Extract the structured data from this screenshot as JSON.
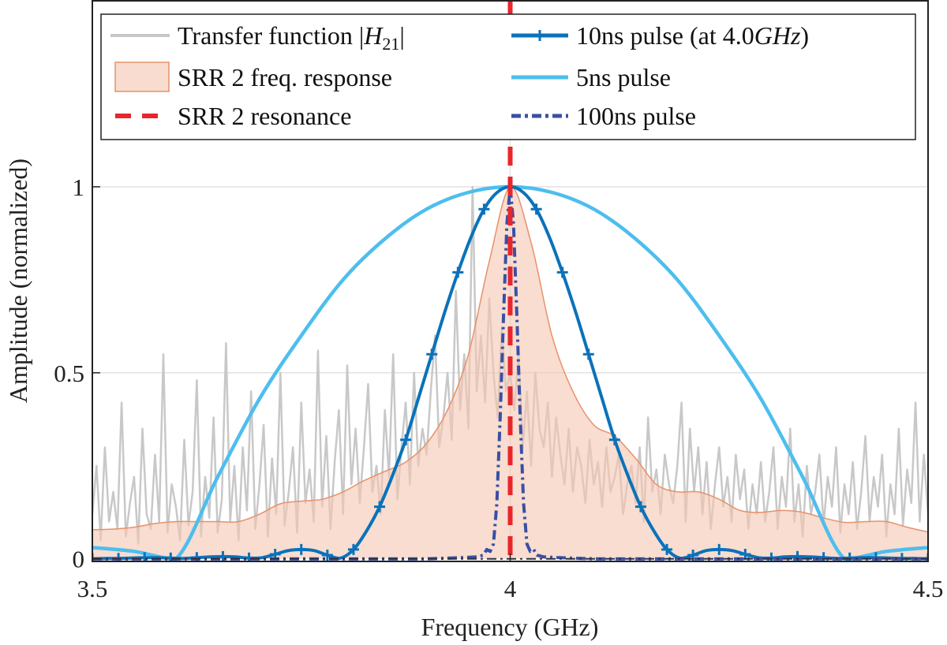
{
  "chart_data": {
    "type": "line",
    "xlabel": "Frequency (GHz)",
    "ylabel": "Amplitude (normalized)",
    "xlim": [
      3.5,
      4.5
    ],
    "ylim": [
      -0.007,
      1.5
    ],
    "xticks": [
      3.5,
      4,
      4.5
    ],
    "xtick_labels": [
      "3.5",
      "4",
      "4.5"
    ],
    "yticks": [
      0,
      0.5,
      1
    ],
    "ytick_labels": [
      "0",
      "0.5",
      "1"
    ],
    "grid": true,
    "legend_placement": "top",
    "series": [
      {
        "key": "transfer",
        "name": "Transfer function |H21|",
        "label_parts": [
          "Transfer function |",
          "H",
          "21",
          "|"
        ],
        "style": "line",
        "color": "#c8c8c8",
        "x_start": 3.5,
        "x_step": 0.005,
        "values": [
          0.12,
          0.25,
          0.05,
          0.3,
          0.1,
          0.18,
          0.08,
          0.42,
          0.06,
          0.15,
          0.22,
          0.04,
          0.35,
          0.12,
          0.08,
          0.28,
          0.1,
          0.55,
          0.07,
          0.2,
          0.14,
          0.05,
          0.32,
          0.09,
          0.18,
          0.48,
          0.06,
          0.22,
          0.11,
          0.38,
          0.07,
          0.16,
          0.58,
          0.1,
          0.25,
          0.05,
          0.3,
          0.13,
          0.45,
          0.08,
          0.2,
          0.36,
          0.06,
          0.27,
          0.12,
          0.5,
          0.09,
          0.18,
          0.3,
          0.07,
          0.42,
          0.15,
          0.24,
          0.1,
          0.56,
          0.14,
          0.33,
          0.08,
          0.26,
          0.4,
          0.12,
          0.52,
          0.2,
          0.35,
          0.15,
          0.3,
          0.47,
          0.18,
          0.25,
          0.12,
          0.4,
          0.22,
          0.55,
          0.16,
          0.3,
          0.42,
          0.2,
          0.5,
          0.25,
          0.35,
          0.28,
          0.45,
          0.6,
          0.3,
          0.38,
          0.5,
          0.32,
          0.72,
          0.4,
          0.55,
          0.35,
          1.0,
          0.45,
          0.6,
          0.42,
          0.7,
          0.5,
          0.38,
          0.62,
          0.45,
          0.5,
          0.4,
          0.55,
          0.3,
          0.45,
          0.25,
          0.5,
          0.35,
          0.3,
          0.42,
          0.22,
          0.38,
          0.28,
          0.2,
          0.35,
          0.18,
          0.3,
          0.25,
          0.15,
          0.32,
          0.2,
          0.26,
          0.14,
          0.3,
          0.18,
          0.22,
          0.28,
          0.12,
          0.2,
          0.25,
          0.15,
          0.3,
          0.1,
          0.38,
          0.18,
          0.24,
          0.12,
          0.28,
          0.2,
          0.15,
          0.25,
          0.42,
          0.1,
          0.35,
          0.18,
          0.3,
          0.12,
          0.26,
          0.08,
          0.2,
          0.3,
          0.14,
          0.22,
          0.1,
          0.28,
          0.16,
          0.24,
          0.08,
          0.2,
          0.12,
          0.26,
          0.1,
          0.18,
          0.3,
          0.08,
          0.22,
          0.14,
          0.35,
          0.1,
          0.2,
          0.06,
          0.25,
          0.12,
          0.18,
          0.28,
          0.09,
          0.22,
          0.14,
          0.3,
          0.07,
          0.2,
          0.12,
          0.26,
          0.08,
          0.18,
          0.33,
          0.1,
          0.22,
          0.14,
          0.28,
          0.06,
          0.2,
          0.12,
          0.35,
          0.09,
          0.24,
          0.15,
          0.42,
          0.1,
          0.28,
          0.12
        ]
      },
      {
        "key": "srr",
        "name": "SRR 2 freq. response",
        "style": "area",
        "color": "#f4c7b0",
        "edge_color": "#e8916a",
        "x_start": 3.5,
        "x_step": 0.025,
        "values": [
          0.078,
          0.08,
          0.085,
          0.095,
          0.1,
          0.1,
          0.1,
          0.1,
          0.12,
          0.148,
          0.155,
          0.16,
          0.18,
          0.21,
          0.235,
          0.26,
          0.31,
          0.4,
          0.55,
          0.8,
          1.0,
          0.85,
          0.6,
          0.45,
          0.36,
          0.33,
          0.27,
          0.2,
          0.18,
          0.18,
          0.16,
          0.13,
          0.125,
          0.13,
          0.125,
          0.11,
          0.098,
          0.1,
          0.1,
          0.085,
          0.072
        ]
      },
      {
        "key": "resonance",
        "name": "SRR 2 resonance",
        "style": "vline-dashed",
        "color": "#e8262c",
        "x": 4.0
      },
      {
        "key": "p10",
        "name": "10ns pulse (at 4.0GHz)",
        "label_parts": [
          "10ns pulse (at 4.0",
          "GHz",
          ")"
        ],
        "style": "line-plus-markers",
        "color": "#0a72ba",
        "x_start": 3.5,
        "x_step": 0.015625,
        "values": [
          0,
          0.001,
          0.001,
          0.002,
          0.003,
          0.003,
          0.002,
          0.001,
          0.003,
          0.005,
          0.006,
          0.005,
          0.002,
          0.003,
          0.012,
          0.022,
          0.025,
          0.022,
          0.01,
          0.002,
          0.025,
          0.075,
          0.14,
          0.225,
          0.32,
          0.435,
          0.55,
          0.665,
          0.77,
          0.865,
          0.94,
          0.985,
          1.0,
          0.985,
          0.94,
          0.865,
          0.77,
          0.665,
          0.55,
          0.435,
          0.32,
          0.225,
          0.14,
          0.075,
          0.025,
          0.002,
          0.01,
          0.022,
          0.025,
          0.022,
          0.012,
          0.003,
          0.002,
          0.005,
          0.006,
          0.005,
          0.003,
          0.001,
          0.002,
          0.003,
          0.003,
          0.002,
          0.001,
          0.001,
          0
        ]
      },
      {
        "key": "p5",
        "name": "5ns pulse",
        "style": "line",
        "color": "#4dbeee",
        "x_start": 3.5,
        "x_step": 0.05,
        "values": [
          0.03,
          0.02,
          0,
          0.22,
          0.43,
          0.6,
          0.75,
          0.86,
          0.94,
          0.985,
          1.0,
          0.985,
          0.94,
          0.86,
          0.75,
          0.6,
          0.43,
          0.22,
          0,
          0.02,
          0.03
        ]
      },
      {
        "key": "p100",
        "name": "100ns pulse",
        "style": "dash-dot",
        "color": "#3a4fa5",
        "x": [
          3.5,
          3.9,
          3.94,
          3.96,
          3.968,
          3.972,
          3.976,
          3.98,
          3.984,
          3.988,
          3.992,
          3.996,
          4.0,
          4.004,
          4.008,
          4.012,
          4.016,
          4.02,
          4.024,
          4.028,
          4.032,
          4.04,
          4.06,
          4.1,
          4.5
        ],
        "values": [
          0,
          0,
          0.003,
          0.005,
          0.01,
          0.025,
          0.02,
          0.04,
          0.15,
          0.38,
          0.65,
          0.9,
          1.0,
          0.9,
          0.65,
          0.38,
          0.15,
          0.04,
          0.02,
          0.025,
          0.01,
          0.005,
          0.003,
          0,
          0
        ]
      }
    ]
  }
}
